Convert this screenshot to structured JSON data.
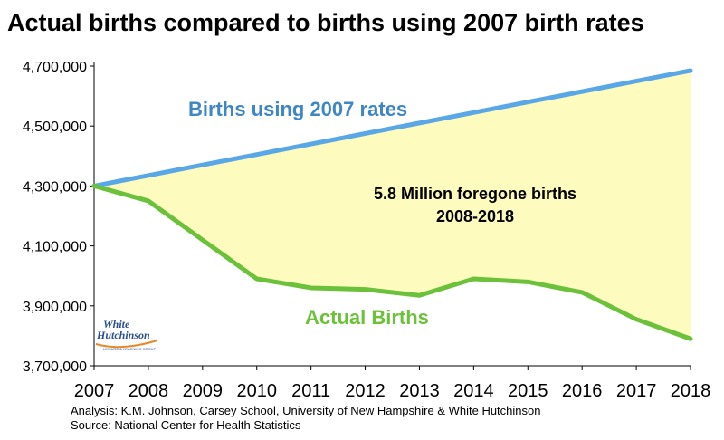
{
  "title": "Actual births compared to births using 2007 birth rates",
  "chart_data": {
    "type": "line",
    "x": [
      2007,
      2008,
      2009,
      2010,
      2011,
      2012,
      2013,
      2014,
      2015,
      2016,
      2017,
      2018
    ],
    "ylim": [
      3700000,
      4700000
    ],
    "yticks": [
      "3,700,000",
      "3,900,000",
      "4,100,000",
      "4,300,000",
      "4,500,000",
      "4,700,000"
    ],
    "ytick_values": [
      3700000,
      3900000,
      4100000,
      4300000,
      4500000,
      4700000
    ],
    "grid": false,
    "series": [
      {
        "name": "Births using 2007 rates",
        "color": "#5aa7e8",
        "values": [
          4300000,
          4335000,
          4370000,
          4405000,
          4440000,
          4475000,
          4510000,
          4545000,
          4580000,
          4615000,
          4650000,
          4685000
        ]
      },
      {
        "name": "Actual Births",
        "color": "#6cc13b",
        "values": [
          4300000,
          4250000,
          4120000,
          3990000,
          3960000,
          3955000,
          3935000,
          3990000,
          3980000,
          3945000,
          3855000,
          3790000
        ]
      }
    ],
    "fill_color": "#fdfbbd",
    "annotation": {
      "line1": "5.8 Million foregone births",
      "line2": "2008-2018"
    }
  },
  "footer": {
    "line1": "Analysis: K.M. Johnson, Carsey School, University of New Hampshire & White Hutchinson",
    "line2": "Source: National Center for Health Statistics"
  },
  "logo": {
    "line1": "White",
    "line2": "Hutchinson",
    "tagline": "LEISURE & LEARNING GROUP"
  }
}
